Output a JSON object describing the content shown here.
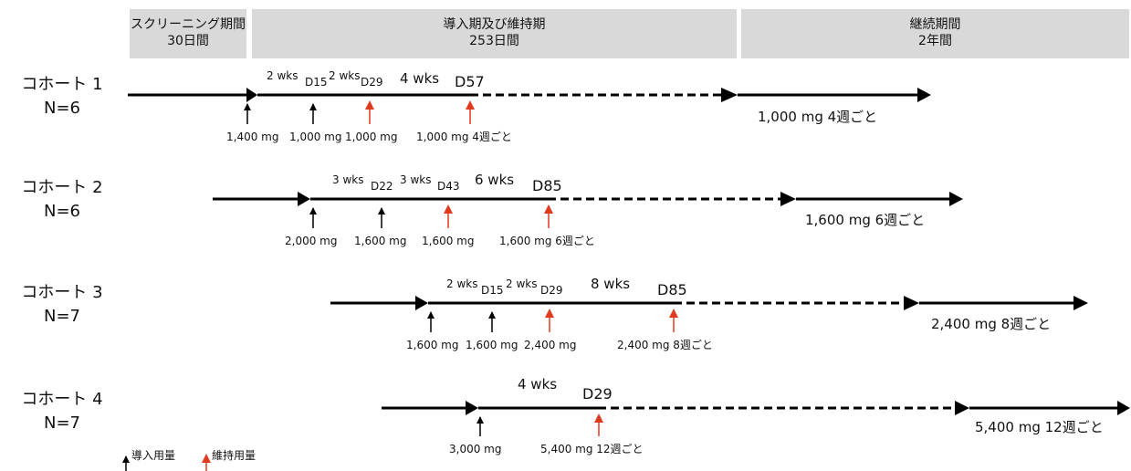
{
  "phases": [
    {
      "line1": "スクリーニング期間",
      "line2": "30日間"
    },
    {
      "line1": "導入期及び維持期",
      "line2": "253日間"
    },
    {
      "line1": "継続期間",
      "line2": "2年間"
    }
  ],
  "cohorts": [
    {
      "name": "コホート 1",
      "n": "N=6",
      "intervals": [
        "2 wks",
        "2 wks",
        "4 wks"
      ],
      "visits": [
        "D15",
        "D29",
        "D57"
      ],
      "doses": [
        "1,400 mg",
        "1,000 mg",
        "1,000 mg",
        "1,000 mg 4週ごと"
      ],
      "continuation_dose": "1,000 mg 4週ごと"
    },
    {
      "name": "コホート 2",
      "n": "N=6",
      "intervals": [
        "3 wks",
        "3 wks",
        "6 wks"
      ],
      "visits": [
        "D22",
        "D43",
        "D85"
      ],
      "doses": [
        "2,000 mg",
        "1,600 mg",
        "1,600 mg",
        "1,600 mg 6週ごと"
      ],
      "continuation_dose": "1,600 mg 6週ごと"
    },
    {
      "name": "コホート 3",
      "n": "N=7",
      "intervals": [
        "2 wks",
        "2 wks",
        "8 wks"
      ],
      "visits": [
        "D15",
        "D29",
        "D85"
      ],
      "doses": [
        "1,600 mg",
        "1,600 mg",
        "2,400 mg",
        "2,400 mg 8週ごと"
      ],
      "continuation_dose": "2,400 mg 8週ごと"
    },
    {
      "name": "コホート 4",
      "n": "N=7",
      "intervals": [
        "4 wks"
      ],
      "visits": [
        "D29"
      ],
      "doses": [
        "3,000 mg",
        "5,400 mg 12週ごと"
      ],
      "continuation_dose": "5,400 mg 12週ごと"
    }
  ],
  "legend": {
    "loading": "導入用量",
    "maintenance": "維持用量"
  },
  "colors": {
    "loading_arrow": "#000000",
    "maintenance_arrow": "#e03a1e",
    "phase_band": "#d9d9d9"
  }
}
